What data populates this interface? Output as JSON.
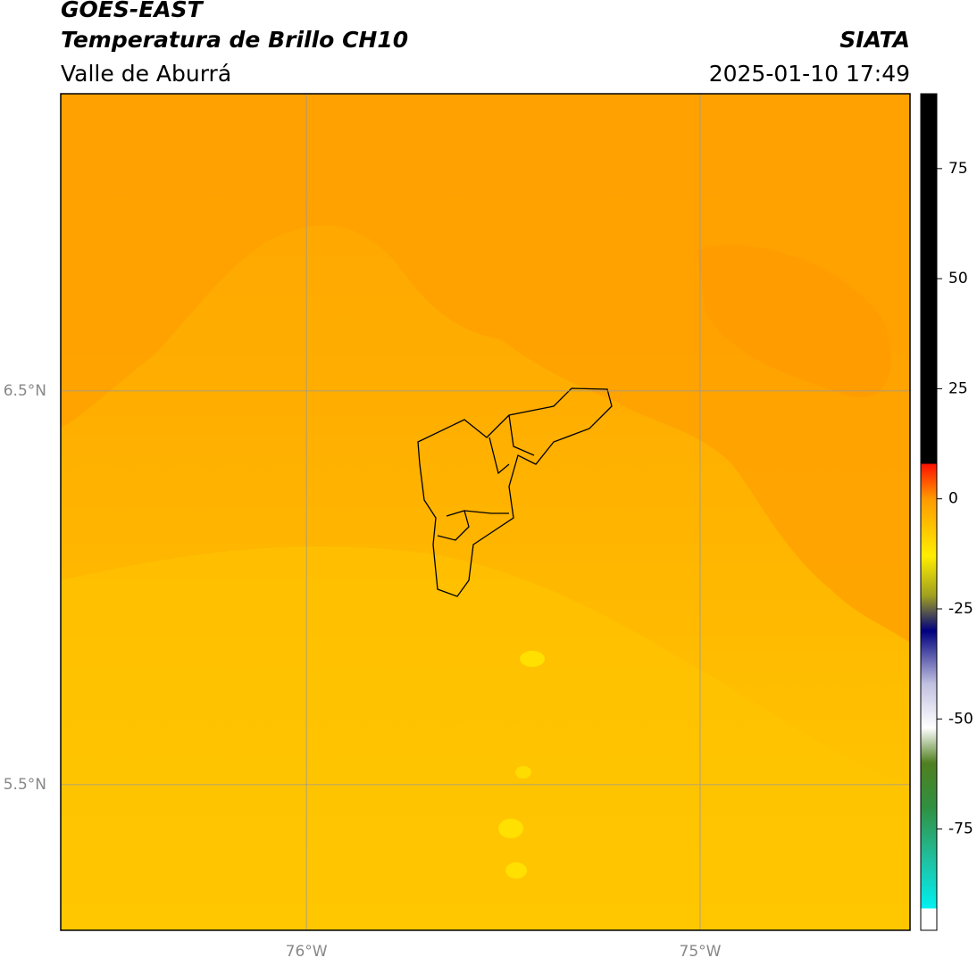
{
  "header": {
    "title": "GOES-EAST",
    "product": "Temperatura de Brillo CH10",
    "region": "Valle de Aburrá",
    "source": "SIATA",
    "datetime": "2025-01-10 17:49"
  },
  "map": {
    "xlim": [
      -76.624,
      -74.467
    ],
    "ylim": [
      5.13,
      7.255
    ],
    "xticks": [
      {
        "value": -76,
        "label": "76°W"
      },
      {
        "value": -75,
        "label": "75°W"
      }
    ],
    "yticks": [
      {
        "value": 6.5,
        "label": "6.5°N"
      },
      {
        "value": 5.5,
        "label": "5.5°N"
      }
    ],
    "grid": true
  },
  "colorbar": {
    "lim": [
      -98,
      92
    ],
    "ticks": [
      75,
      50,
      25,
      0,
      -25,
      -50,
      -75
    ],
    "stops": [
      {
        "value": -98,
        "color": "#ffffff"
      },
      {
        "value": -93,
        "color": "#ffffff"
      },
      {
        "value": -93,
        "color": "#00f0f0"
      },
      {
        "value": -82,
        "color": "#20c0a0"
      },
      {
        "value": -70,
        "color": "#309040"
      },
      {
        "value": -60,
        "color": "#507f20"
      },
      {
        "value": -52,
        "color": "#ffffff"
      },
      {
        "value": -42,
        "color": "#c0c0e0"
      },
      {
        "value": -30,
        "color": "#000080"
      },
      {
        "value": -22,
        "color": "#a0a020"
      },
      {
        "value": -13,
        "color": "#ffee00"
      },
      {
        "value": 0,
        "color": "#ff9900"
      },
      {
        "value": 8,
        "color": "#ff1000"
      },
      {
        "value": 8,
        "color": "#000000"
      },
      {
        "value": 92,
        "color": "#000000"
      }
    ]
  }
}
